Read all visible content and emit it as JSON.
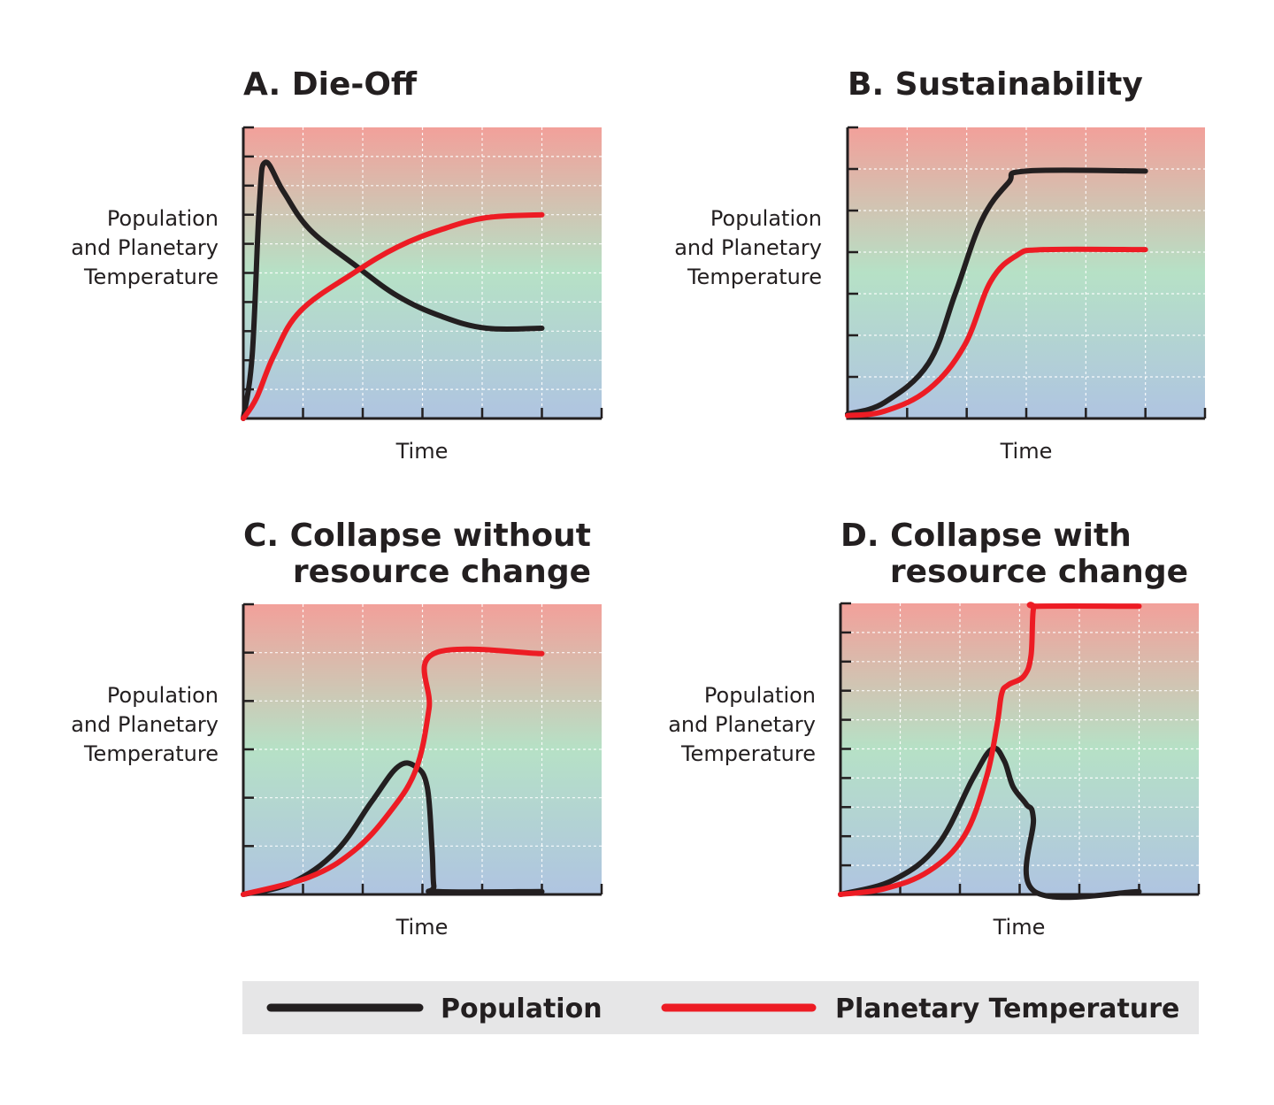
{
  "chart_data": [
    {
      "type": "line",
      "title": "A. Die-Off",
      "xlabel": "Time",
      "ylabel": [
        "Population",
        "and Planetary",
        "Temperature"
      ],
      "xlim": [
        0,
        6
      ],
      "ylim": [
        0,
        1
      ],
      "y_divisions": 10,
      "x_divisions": 6,
      "grid": true,
      "series": [
        {
          "name": "Population",
          "color": "#231f20",
          "points": [
            [
              0,
              0
            ],
            [
              0.15,
              0.22
            ],
            [
              0.27,
              0.74
            ],
            [
              0.37,
              0.88
            ],
            [
              0.67,
              0.78
            ],
            [
              1.11,
              0.65
            ],
            [
              1.85,
              0.53
            ],
            [
              2.59,
              0.42
            ],
            [
              3.33,
              0.35
            ],
            [
              4.07,
              0.31
            ],
            [
              5,
              0.31
            ]
          ]
        },
        {
          "name": "Planetary Temperature",
          "color": "#ed1c24",
          "points": [
            [
              0,
              0
            ],
            [
              0.22,
              0.07
            ],
            [
              0.52,
              0.22
            ],
            [
              0.96,
              0.37
            ],
            [
              1.85,
              0.5
            ],
            [
              2.59,
              0.59
            ],
            [
              3.33,
              0.65
            ],
            [
              4.07,
              0.69
            ],
            [
              5,
              0.7
            ]
          ]
        }
      ]
    },
    {
      "type": "line",
      "title": "B. Sustainability",
      "xlabel": "Time",
      "ylabel": [
        "Population",
        "and Planetary",
        "Temperature"
      ],
      "xlim": [
        0,
        6
      ],
      "ylim": [
        0,
        1
      ],
      "y_divisions": 7,
      "x_divisions": 6,
      "grid": true,
      "series": [
        {
          "name": "Population",
          "color": "#231f20",
          "points": [
            [
              0,
              0.015
            ],
            [
              0.62,
              0.055
            ],
            [
              1.36,
              0.19
            ],
            [
              1.81,
              0.43
            ],
            [
              2.25,
              0.68
            ],
            [
              2.7,
              0.81
            ],
            [
              3,
              0.85
            ],
            [
              5,
              0.85
            ]
          ]
        },
        {
          "name": "Planetary Temperature",
          "color": "#ed1c24",
          "points": [
            [
              0,
              0.01
            ],
            [
              0.62,
              0.025
            ],
            [
              1.36,
              0.1
            ],
            [
              1.96,
              0.25
            ],
            [
              2.4,
              0.47
            ],
            [
              2.84,
              0.56
            ],
            [
              3.29,
              0.58
            ],
            [
              5,
              0.58
            ]
          ]
        }
      ]
    },
    {
      "type": "line",
      "title": [
        "C. Collapse without",
        "resource change"
      ],
      "xlabel": "Time",
      "ylabel": [
        "Population",
        "and Planetary",
        "Temperature"
      ],
      "xlim": [
        0,
        6
      ],
      "ylim": [
        0,
        1
      ],
      "y_divisions": 6,
      "x_divisions": 6,
      "grid": true,
      "series": [
        {
          "name": "Population",
          "color": "#231f20",
          "points": [
            [
              0,
              0
            ],
            [
              0.81,
              0.04
            ],
            [
              1.56,
              0.15
            ],
            [
              2.15,
              0.32
            ],
            [
              2.59,
              0.44
            ],
            [
              2.89,
              0.44
            ],
            [
              3.08,
              0.37
            ],
            [
              3.16,
              0.16
            ],
            [
              3.19,
              0.03
            ],
            [
              3.26,
              0.01
            ],
            [
              5,
              0.01
            ]
          ]
        },
        {
          "name": "Planetary Temperature",
          "color": "#ed1c24",
          "points": [
            [
              0,
              0
            ],
            [
              1.11,
              0.06
            ],
            [
              1.85,
              0.15
            ],
            [
              2.44,
              0.28
            ],
            [
              2.89,
              0.43
            ],
            [
              3.11,
              0.64
            ],
            [
              3.19,
              0.83
            ],
            [
              5,
              0.83
            ]
          ]
        }
      ]
    },
    {
      "type": "line",
      "title": [
        "D. Collapse with",
        "resource change"
      ],
      "xlabel": "Time",
      "ylabel": [
        "Population",
        "and Planetary",
        "Temperature"
      ],
      "xlim": [
        0,
        6
      ],
      "ylim": [
        0,
        1
      ],
      "y_divisions": 10,
      "x_divisions": 6,
      "grid": true,
      "series": [
        {
          "name": "Population",
          "color": "#231f20",
          "points": [
            [
              0,
              0
            ],
            [
              0.89,
              0.05
            ],
            [
              1.63,
              0.17
            ],
            [
              2.22,
              0.4
            ],
            [
              2.54,
              0.5
            ],
            [
              2.74,
              0.46
            ],
            [
              2.89,
              0.37
            ],
            [
              3.11,
              0.31
            ],
            [
              3.23,
              0.26
            ],
            [
              3.25,
              0.01
            ],
            [
              5,
              0.01
            ]
          ]
        },
        {
          "name": "Planetary Temperature",
          "color": "#ed1c24",
          "points": [
            [
              0,
              0
            ],
            [
              0.74,
              0.02
            ],
            [
              1.48,
              0.08
            ],
            [
              2.07,
              0.2
            ],
            [
              2.44,
              0.4
            ],
            [
              2.62,
              0.58
            ],
            [
              2.7,
              0.69
            ],
            [
              2.81,
              0.72
            ],
            [
              3.07,
              0.75
            ],
            [
              3.19,
              0.82
            ],
            [
              3.23,
              0.98
            ],
            [
              3.33,
              0.99
            ],
            [
              5,
              0.99
            ]
          ]
        }
      ]
    }
  ],
  "legend": {
    "position": "bottom",
    "items": [
      {
        "label": "Population",
        "color": "#231f20"
      },
      {
        "label": "Planetary Temperature",
        "color": "#ed1c24"
      }
    ]
  },
  "background_gradient": {
    "top": "#f2a09a",
    "middle": "#b6e1c6",
    "bottom": "#afc4e1"
  }
}
